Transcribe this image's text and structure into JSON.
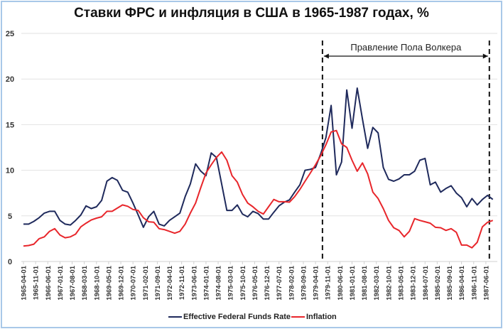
{
  "chart_data": {
    "type": "line",
    "title": "Ставки ФРС и инфляция в США в 1965-1987 годах, %",
    "xlabel": "",
    "ylabel": "",
    "ylim": [
      0,
      25
    ],
    "yticks": [
      0,
      5,
      10,
      15,
      20,
      25
    ],
    "grid": "horizontal",
    "legend_placement": "bottom",
    "xtick_labels": [
      "1965-04-01",
      "1965-11-01",
      "1966-06-01",
      "1967-01-01",
      "1967-08-01",
      "1968-03-01",
      "1968-10-01",
      "1969-05-01",
      "1969-12-01",
      "1970-07-01",
      "1971-02-01",
      "1971-09-01",
      "1972-04-01",
      "1972-11-01",
      "1973-06-01",
      "1974-01-01",
      "1974-08-01",
      "1975-03-01",
      "1975-10-01",
      "1976-05-01",
      "1976-12-01",
      "1977-07-01",
      "1978-02-01",
      "1978-09-01",
      "1979-04-01",
      "1979-11-01",
      "1980-06-01",
      "1981-01-01",
      "1981-08-01",
      "1982-03-01",
      "1982-10-01",
      "1983-05-01",
      "1983-12-01",
      "1984-07-01",
      "1985-02-01",
      "1985-09-01",
      "1986-04-01",
      "1986-11-01",
      "1987-06-01"
    ],
    "x": [
      "1965-04-01",
      "1965-07-01",
      "1965-10-01",
      "1966-01-01",
      "1966-04-01",
      "1966-07-01",
      "1966-10-01",
      "1967-01-01",
      "1967-04-01",
      "1967-07-01",
      "1967-10-01",
      "1968-01-01",
      "1968-04-01",
      "1968-07-01",
      "1968-10-01",
      "1969-01-01",
      "1969-04-01",
      "1969-07-01",
      "1969-10-01",
      "1970-01-01",
      "1970-04-01",
      "1970-07-01",
      "1970-10-01",
      "1971-01-01",
      "1971-04-01",
      "1971-07-01",
      "1971-10-01",
      "1972-01-01",
      "1972-04-01",
      "1972-07-01",
      "1972-10-01",
      "1973-01-01",
      "1973-04-01",
      "1973-07-01",
      "1973-10-01",
      "1974-01-01",
      "1974-04-01",
      "1974-07-01",
      "1974-10-01",
      "1975-01-01",
      "1975-04-01",
      "1975-07-01",
      "1975-10-01",
      "1976-01-01",
      "1976-04-01",
      "1976-07-01",
      "1976-10-01",
      "1977-01-01",
      "1977-04-01",
      "1977-07-01",
      "1977-10-01",
      "1978-01-01",
      "1978-04-01",
      "1978-07-01",
      "1978-10-01",
      "1979-01-01",
      "1979-04-01",
      "1979-07-01",
      "1979-10-01",
      "1980-01-01",
      "1980-04-01",
      "1980-07-01",
      "1980-10-01",
      "1981-01-01",
      "1981-04-01",
      "1981-07-01",
      "1981-10-01",
      "1982-01-01",
      "1982-04-01",
      "1982-07-01",
      "1982-10-01",
      "1983-01-01",
      "1983-04-01",
      "1983-07-01",
      "1983-10-01",
      "1984-01-01",
      "1984-04-01",
      "1984-07-01",
      "1984-10-01",
      "1985-01-01",
      "1985-04-01",
      "1985-07-01",
      "1985-10-01",
      "1986-01-01",
      "1986-04-01",
      "1986-07-01",
      "1986-10-01",
      "1987-01-01",
      "1987-04-01",
      "1987-07-01",
      "1987-10-01"
    ],
    "series": [
      {
        "name": "Effective Federal Funds Rate",
        "color": "#1f2a5c",
        "values": [
          4.1,
          4.1,
          4.4,
          4.8,
          5.3,
          5.5,
          5.5,
          4.5,
          4.1,
          4.0,
          4.5,
          5.1,
          6.1,
          5.8,
          6.0,
          6.7,
          8.8,
          9.2,
          8.9,
          7.8,
          7.6,
          6.4,
          5.1,
          3.75,
          4.9,
          5.5,
          4.1,
          3.9,
          4.5,
          4.9,
          5.3,
          7.1,
          8.5,
          10.7,
          9.9,
          9.4,
          11.9,
          11.4,
          8.5,
          5.6,
          5.6,
          6.2,
          5.2,
          4.9,
          5.5,
          5.25,
          4.65,
          4.65,
          5.4,
          6.1,
          6.5,
          6.75,
          7.6,
          8.4,
          10.0,
          10.1,
          10.3,
          11.8,
          13.6,
          17.1,
          9.5,
          10.9,
          18.8,
          14.6,
          19.0,
          15.6,
          12.4,
          14.7,
          14.1,
          10.3,
          9.0,
          8.8,
          9.05,
          9.5,
          9.5,
          9.9,
          11.1,
          11.3,
          8.4,
          8.7,
          7.6,
          8.0,
          8.3,
          7.5,
          7.0,
          6.0,
          6.9,
          6.2,
          6.8,
          7.25,
          6.8
        ]
      },
      {
        "name": "Inflation",
        "color": "#e8262b",
        "values": [
          1.7,
          1.75,
          1.9,
          2.5,
          2.7,
          3.3,
          3.6,
          2.9,
          2.6,
          2.7,
          3.0,
          3.8,
          4.2,
          4.55,
          4.75,
          4.9,
          5.5,
          5.5,
          5.85,
          6.2,
          6.05,
          5.7,
          5.6,
          4.8,
          4.35,
          4.3,
          3.6,
          3.5,
          3.3,
          3.1,
          3.3,
          4.1,
          5.3,
          6.4,
          8.1,
          9.7,
          10.6,
          11.4,
          12.0,
          11.1,
          9.4,
          8.7,
          7.35,
          6.4,
          6.0,
          5.5,
          5.2,
          6.0,
          6.8,
          6.55,
          6.55,
          6.5,
          7.1,
          7.9,
          8.8,
          9.7,
          10.6,
          11.6,
          12.8,
          14.2,
          14.35,
          12.9,
          12.5,
          11.1,
          9.9,
          10.8,
          9.6,
          7.6,
          6.9,
          5.8,
          4.5,
          3.7,
          3.4,
          2.7,
          3.3,
          4.7,
          4.5,
          4.35,
          4.2,
          3.75,
          3.7,
          3.4,
          3.6,
          3.2,
          1.8,
          1.8,
          1.5,
          2.1,
          3.8,
          4.3,
          4.5
        ]
      }
    ],
    "annotation": {
      "label": "Правление Пола Волкера",
      "start": "1979-08-01",
      "end": "1987-08-01"
    }
  }
}
